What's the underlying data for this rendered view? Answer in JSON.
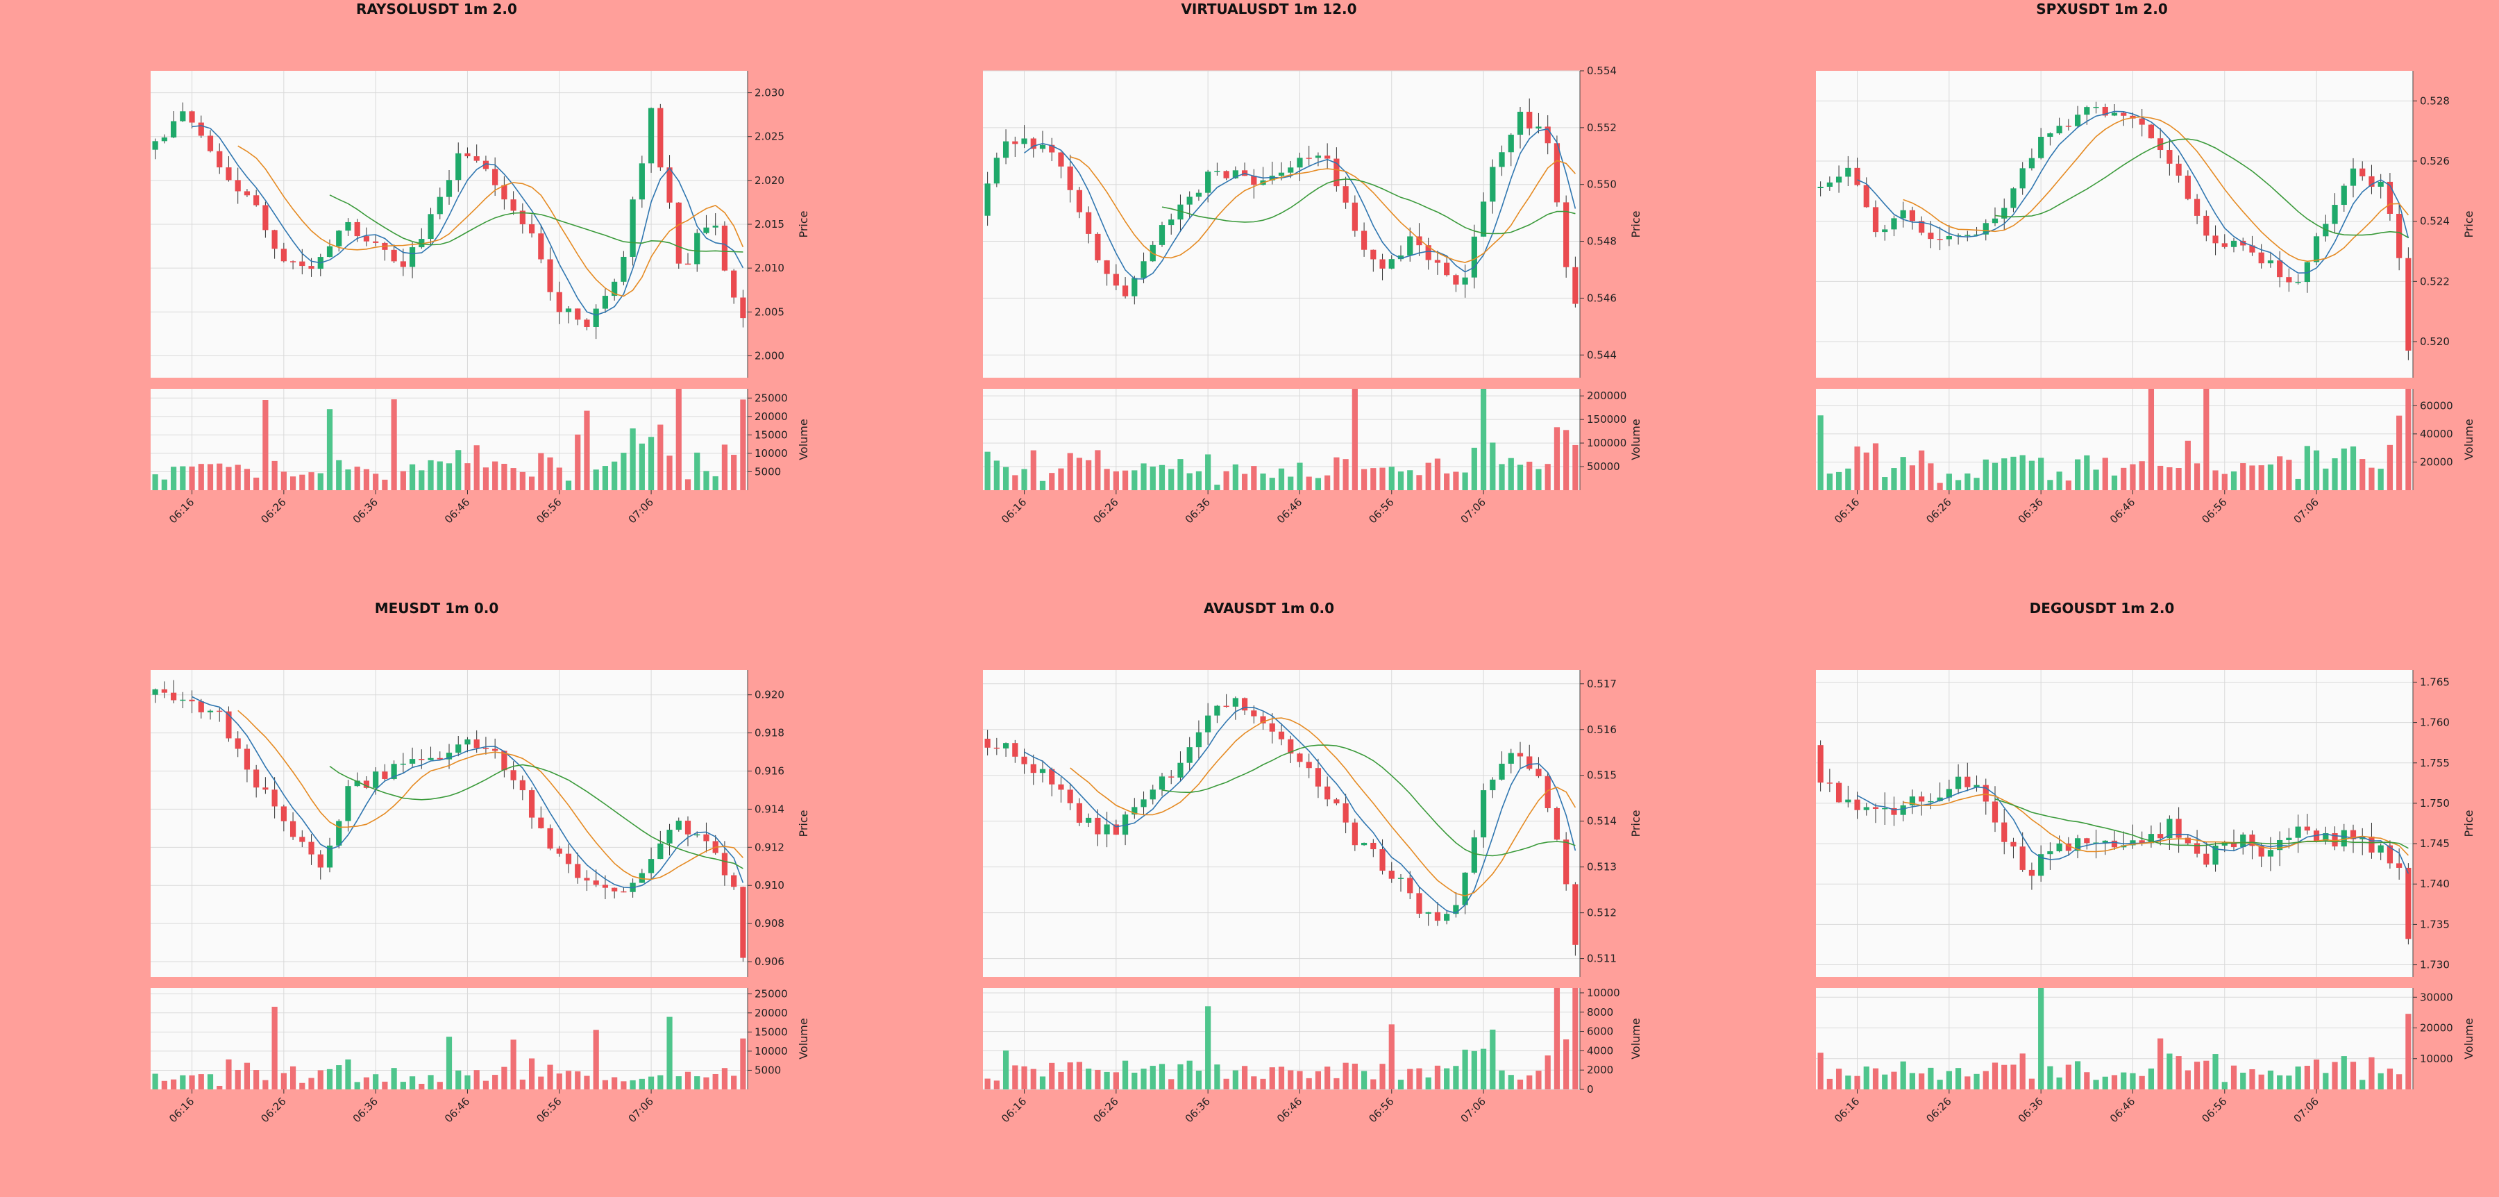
{
  "page": {
    "background": "#ff9f9a"
  },
  "theme": {
    "up_color": "#1fa96a",
    "down_color": "#ea4a4f",
    "up_volume_color": "#4ec58c",
    "down_volume_color": "#f06f74",
    "ma_colors": [
      "#2f76b0",
      "#e58a22",
      "#3a9a3a"
    ]
  },
  "chart_data": [
    {
      "type": "candlestick",
      "title": "RAYSOLUSDT 1m 2.0",
      "ylabel": "Price",
      "volume_label": "Volume",
      "x_ticks": [
        "06:16",
        "06:26",
        "06:36",
        "06:46",
        "06:56",
        "07:06"
      ],
      "price_ticks": [
        "2.000",
        "2.005",
        "2.010",
        "2.015",
        "2.020",
        "2.025",
        "2.030"
      ],
      "ylim": [
        1.9975,
        2.0325
      ],
      "volume_ticks": [
        "5000",
        "10000",
        "15000",
        "20000",
        "25000"
      ],
      "vlim": [
        0,
        27500
      ],
      "start": 2.0235,
      "step": 0.0016,
      "vol_base": 3500,
      "vol_amp": 3.4,
      "mean": 2.015,
      "spread": 0.013,
      "profile": [
        0.7,
        1.0,
        0.55,
        0.25,
        -0.3,
        -0.35,
        0.0,
        -0.2,
        -0.4,
        0.1,
        0.7,
        0.3,
        0.0,
        -0.7,
        -0.9,
        -0.5,
        1.0,
        -0.4,
        0.1,
        -1.0
      ],
      "last_close": 2.0043
    },
    {
      "type": "candlestick",
      "title": "VIRTUALUSDT 1m 12.0",
      "ylabel": "Price",
      "volume_label": "Volume",
      "x_ticks": [
        "06:16",
        "06:26",
        "06:36",
        "06:46",
        "06:56",
        "07:06"
      ],
      "price_ticks": [
        "0.544",
        "0.546",
        "0.548",
        "0.550",
        "0.552",
        "0.554"
      ],
      "ylim": [
        0.5432,
        0.554
      ],
      "volume_ticks": [
        "50000",
        "100000",
        "150000",
        "200000"
      ],
      "vlim": [
        0,
        215000
      ],
      "start": 0.5489,
      "step": 0.00055,
      "vol_base": 30000,
      "vol_amp": 3.0,
      "mean": 0.5492,
      "spread": 0.0036,
      "profile": [
        0.3,
        0.7,
        0.6,
        0.2,
        -0.6,
        -0.9,
        -0.3,
        0.1,
        0.3,
        0.4,
        0.2,
        0.5,
        0.6,
        -0.2,
        -0.7,
        -0.3,
        -0.6,
        -0.8,
        0.4,
        0.9,
        0.7,
        -1.2
      ],
      "last_close": 0.5458
    },
    {
      "type": "candlestick",
      "title": "SPXUSDT 1m 2.0",
      "ylabel": "Price",
      "volume_label": "Volume",
      "x_ticks": [
        "06:16",
        "06:26",
        "06:36",
        "06:46",
        "06:56",
        "07:06"
      ],
      "price_ticks": [
        "0.520",
        "0.522",
        "0.524",
        "0.526",
        "0.528"
      ],
      "ylim": [
        0.5188,
        0.529
      ],
      "volume_ticks": [
        "20000",
        "40000",
        "60000"
      ],
      "vlim": [
        0,
        72000
      ],
      "start": 0.5251,
      "step": 0.00045,
      "vol_base": 13000,
      "vol_amp": 3.6,
      "mean": 0.5245,
      "spread": 0.0033,
      "profile": [
        0.2,
        0.4,
        -0.3,
        0.0,
        -0.4,
        -0.3,
        -0.2,
        0.2,
        0.7,
        0.9,
        1.0,
        0.9,
        0.7,
        0.2,
        -0.4,
        -0.3,
        -0.6,
        -0.8,
        -0.2,
        0.4,
        0.2,
        -0.8
      ],
      "last_close": 0.5197
    },
    {
      "type": "candlestick",
      "title": "MEUSDT 1m 0.0",
      "ylabel": "Price",
      "volume_label": "Volume",
      "x_ticks": [
        "06:16",
        "06:26",
        "06:36",
        "06:46",
        "06:56",
        "07:06"
      ],
      "price_ticks": [
        "0.906",
        "0.908",
        "0.910",
        "0.912",
        "0.914",
        "0.916",
        "0.918",
        "0.920"
      ],
      "ylim": [
        0.9052,
        0.9213
      ],
      "volume_ticks": [
        "5000",
        "10000",
        "15000",
        "20000",
        "25000"
      ],
      "vlim": [
        0,
        26500
      ],
      "start": 0.92,
      "step": 0.00075,
      "vol_base": 2600,
      "vol_amp": 3.8,
      "mean": 0.914,
      "spread": 0.006,
      "profile": [
        1.0,
        0.9,
        0.8,
        0.3,
        -0.2,
        -0.5,
        0.2,
        0.3,
        0.4,
        0.5,
        0.6,
        0.3,
        -0.3,
        -0.6,
        -0.8,
        -0.5,
        -0.1,
        -0.3,
        -0.9
      ],
      "last_close": 0.9062
    },
    {
      "type": "candlestick",
      "title": "AVAUSDT 1m 0.0",
      "ylabel": "Price",
      "volume_label": "Volume",
      "x_ticks": [
        "06:16",
        "06:26",
        "06:36",
        "06:46",
        "06:56",
        "07:06"
      ],
      "price_ticks": [
        "0.511",
        "0.512",
        "0.513",
        "0.514",
        "0.515",
        "0.516",
        "0.517"
      ],
      "ylim": [
        0.5106,
        0.5173
      ],
      "volume_ticks": [
        "0",
        "2000",
        "4000",
        "6000",
        "8000",
        "10000"
      ],
      "vlim": [
        0,
        10500
      ],
      "start": 0.5158,
      "step": 0.00032,
      "vol_base": 1300,
      "vol_amp": 4.0,
      "mean": 0.5143,
      "spread": 0.002,
      "profile": [
        0.7,
        0.6,
        0.3,
        -0.1,
        -0.3,
        0.1,
        0.4,
        0.9,
        1.2,
        0.9,
        0.6,
        0.1,
        -0.4,
        -0.7,
        -1.1,
        -1.2,
        0.1,
        0.6,
        0.2,
        -1.3
      ],
      "last_close": 0.5113
    },
    {
      "type": "candlestick",
      "title": "DEGOUSDT 1m 2.0",
      "ylabel": "Price",
      "volume_label": "Volume",
      "x_ticks": [
        "06:16",
        "06:26",
        "06:36",
        "06:46",
        "06:56",
        "07:06"
      ],
      "price_ticks": [
        "1.730",
        "1.735",
        "1.740",
        "1.745",
        "1.750",
        "1.755",
        "1.760",
        "1.765"
      ],
      "ylim": [
        1.7285,
        1.7665
      ],
      "volume_ticks": [
        "10000",
        "20000",
        "30000"
      ],
      "vlim": [
        0,
        33000
      ],
      "start": 1.7572,
      "step": 0.0022,
      "vol_base": 5000,
      "vol_amp": 3.6,
      "mean": 1.746,
      "spread": 0.007,
      "profile": [
        0.9,
        0.6,
        0.3,
        0.5,
        0.8,
        1.0,
        0.2,
        -0.6,
        -0.3,
        0.0,
        -0.2,
        0.0,
        0.2,
        -0.5,
        -0.1,
        -0.2,
        0.1,
        -0.1,
        0.0,
        -0.3,
        -0.6
      ],
      "last_close": 1.7332
    }
  ]
}
